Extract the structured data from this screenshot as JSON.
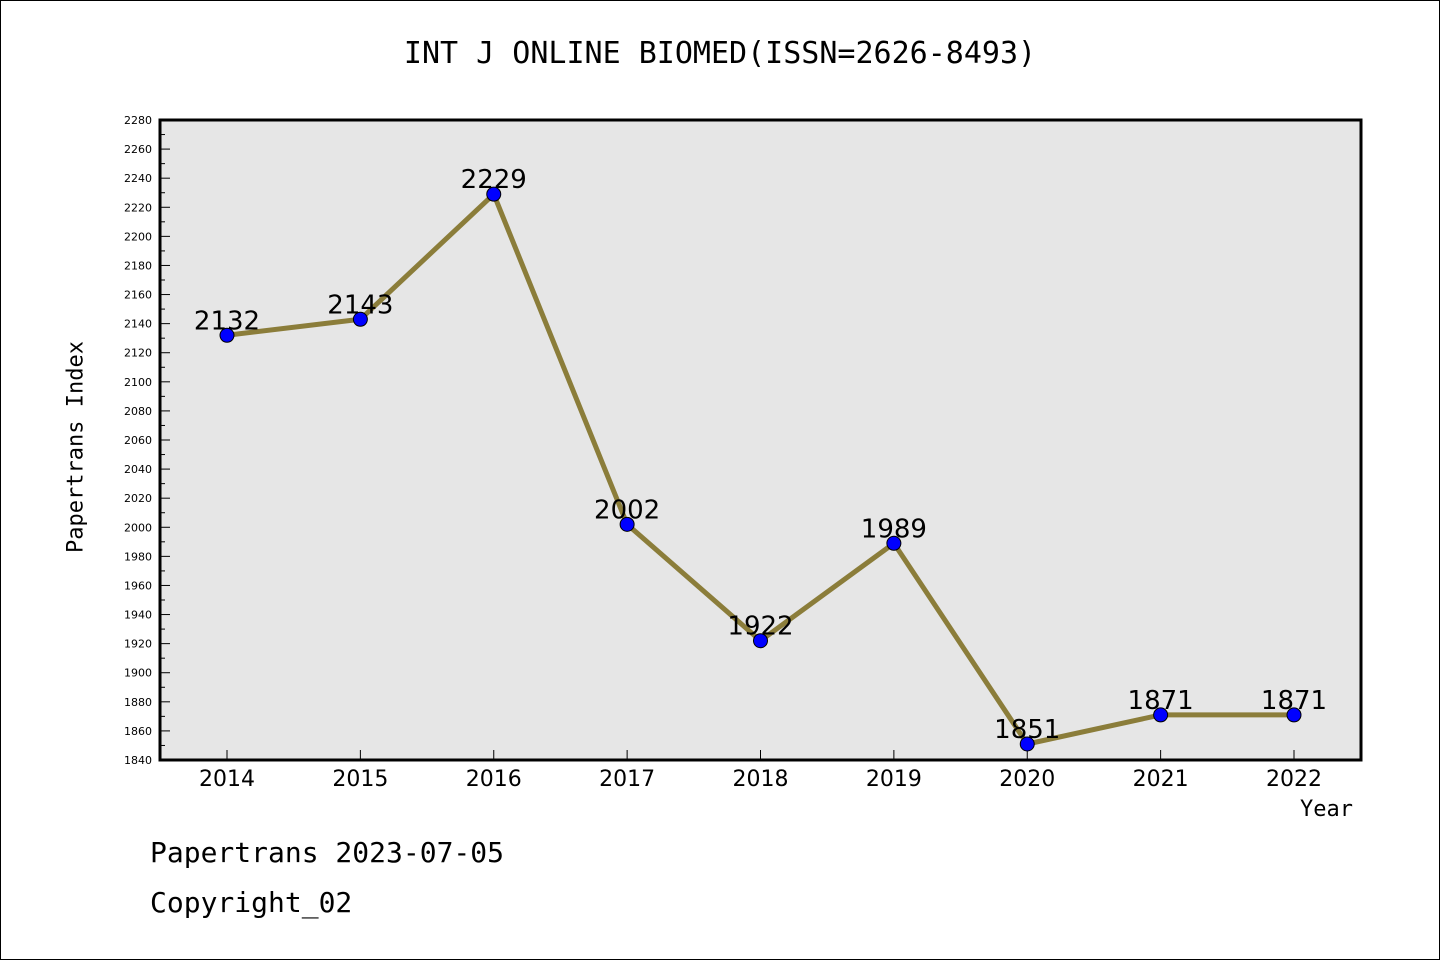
{
  "chart_data": {
    "type": "line",
    "title": "INT J ONLINE BIOMED(ISSN=2626-8493)",
    "xlabel": "Year",
    "ylabel": "Papertrans Index",
    "categories": [
      "2014",
      "2015",
      "2016",
      "2017",
      "2018",
      "2019",
      "2020",
      "2021",
      "2022"
    ],
    "series": [
      {
        "values": [
          2132,
          2143,
          2229,
          2002,
          1922,
          1989,
          1851,
          1871,
          1871
        ]
      }
    ],
    "data_labels": [
      "2132",
      "2143",
      "2229",
      "2002",
      "1922",
      "1989",
      "1851",
      "1871",
      "1871"
    ],
    "ylim": [
      1840,
      2280
    ],
    "ytick_step": 20,
    "y_ticks": [
      "1840",
      "1860",
      "1880",
      "1900",
      "1920",
      "1940",
      "1960",
      "1980",
      "2000",
      "2020",
      "2040",
      "2060",
      "2080",
      "2100",
      "2120",
      "2140",
      "2160",
      "2180",
      "2200",
      "2220",
      "2240",
      "2260",
      "2280"
    ],
    "grid": false,
    "legend": "none",
    "colors": {
      "line": "#8b7d3a",
      "marker": "#0000ff",
      "plot_bg": "#e6e6e6"
    }
  },
  "footer": {
    "line1": "Papertrans 2023-07-05",
    "line2": "Copyright_02"
  }
}
